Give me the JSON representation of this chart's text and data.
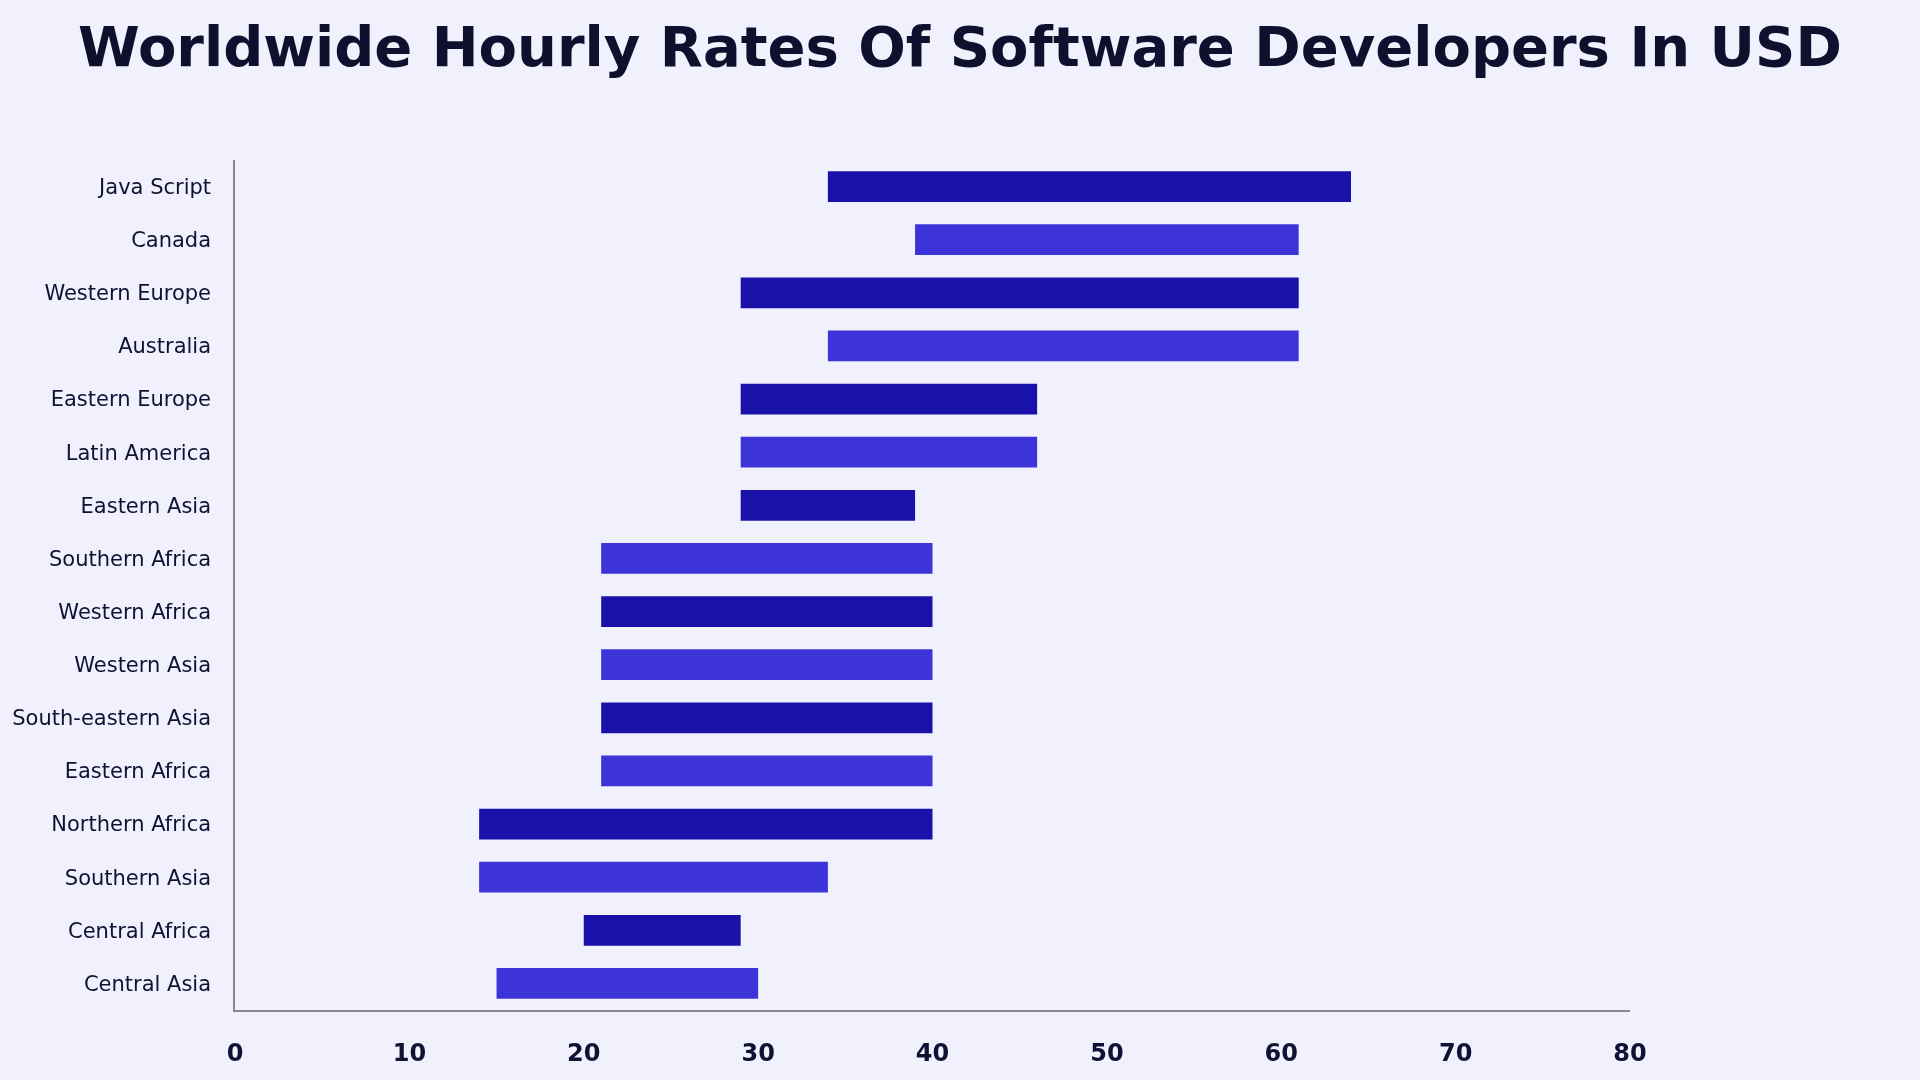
{
  "chart_data": {
    "type": "bar",
    "orientation": "horizontal",
    "title": "Worldwide Hourly Rates Of Software Developers In USD",
    "categories": [
      "Java Script",
      "Canada",
      "Western Europe",
      "Australia",
      "Eastern Europe",
      "Latin America",
      "Eastern Asia",
      "Southern Africa",
      "Western Africa",
      "Western Asia",
      "South-eastern Asia",
      "Eastern Africa",
      "Northern Africa",
      "Southern Asia",
      "Central Africa",
      "Central Asia"
    ],
    "base": [
      34,
      39,
      29,
      34,
      29,
      29,
      29,
      21,
      21,
      21,
      21,
      21,
      14,
      14,
      20,
      15
    ],
    "values": [
      30,
      22,
      32,
      27,
      17,
      17,
      10,
      19,
      19,
      19,
      19,
      19,
      26,
      20,
      9,
      15
    ],
    "colors": [
      "#1a12a8",
      "#3c33d9",
      "#1a12a8",
      "#3c33d9",
      "#1a12a8",
      "#3c33d9",
      "#1a12a8",
      "#3c33d9",
      "#1a12a8",
      "#3c33d9",
      "#1a12a8",
      "#3c33d9",
      "#1a12a8",
      "#3c33d9",
      "#1a12a8",
      "#3c33d9"
    ],
    "xlim": [
      0,
      80
    ],
    "xticks": [
      0,
      10,
      20,
      30,
      40,
      50,
      60,
      70,
      80
    ],
    "grid": false
  }
}
